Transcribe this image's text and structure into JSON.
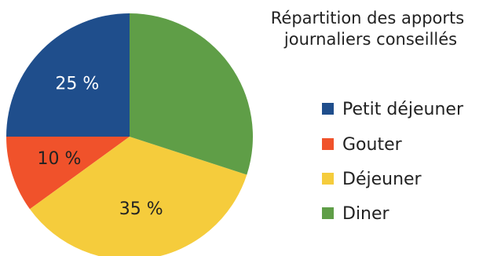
{
  "chart_data": {
    "type": "pie",
    "title_lines": [
      "Répartition des apports",
      "journaliers conseillés"
    ],
    "start_angle": "top",
    "direction": "counterclockwise",
    "legend_position": "right",
    "slices": [
      {
        "name": "Petit déjeuner",
        "value": 25,
        "label": "25 %",
        "color": "#1f4e8c",
        "label_color": "#ffffff"
      },
      {
        "name": "Gouter",
        "value": 10,
        "label": "10 %",
        "color": "#f0522b",
        "label_color": "#222222"
      },
      {
        "name": "Déjeuner",
        "value": 35,
        "label": "35 %",
        "color": "#f5cc3c",
        "label_color": "#222222"
      },
      {
        "name": "Diner",
        "value": 30,
        "label": "",
        "color": "#5f9e47",
        "label_color": "#222222"
      }
    ]
  }
}
